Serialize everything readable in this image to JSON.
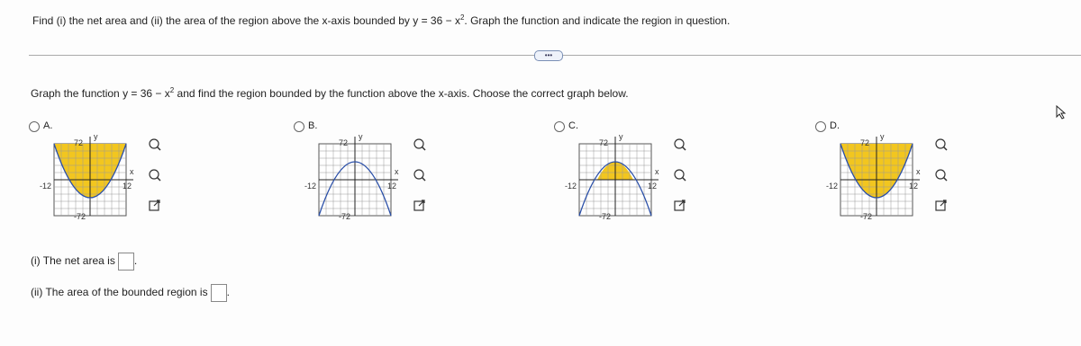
{
  "question": {
    "before": "Find (i) the net area and (ii) the area of the region above the x-axis bounded by y = 36 − x",
    "exponent": "2",
    "after": ". Graph the function and indicate the region in question."
  },
  "instruction": {
    "before": "Graph the function y = 36 − x",
    "exponent": "2",
    "after": " and find the region bounded by the function above the x-axis. Choose the correct graph below."
  },
  "options": [
    {
      "label": "A.",
      "graph": {
        "y_axis": "y",
        "x_axis": "x",
        "y_max": "72",
        "y_min": "-72",
        "x_min": "-12",
        "x_max": "12"
      }
    },
    {
      "label": "B.",
      "graph": {
        "y_axis": "y",
        "x_axis": "x",
        "y_max": "72",
        "y_min": "-72",
        "x_min": "-12",
        "x_max": "12"
      }
    },
    {
      "label": "C.",
      "graph": {
        "y_axis": "y",
        "x_axis": "x",
        "y_max": "72",
        "y_min": "-72",
        "x_min": "-12",
        "x_max": "12"
      }
    },
    {
      "label": "D.",
      "graph": {
        "y_axis": "y",
        "x_axis": "x",
        "y_max": "72",
        "y_min": "-72",
        "x_min": "-12",
        "x_max": "12"
      }
    }
  ],
  "answers": [
    {
      "prompt": "(i) The net area is",
      "end": "."
    },
    {
      "prompt": "(ii) The area of the bounded region is",
      "end": "."
    }
  ]
}
